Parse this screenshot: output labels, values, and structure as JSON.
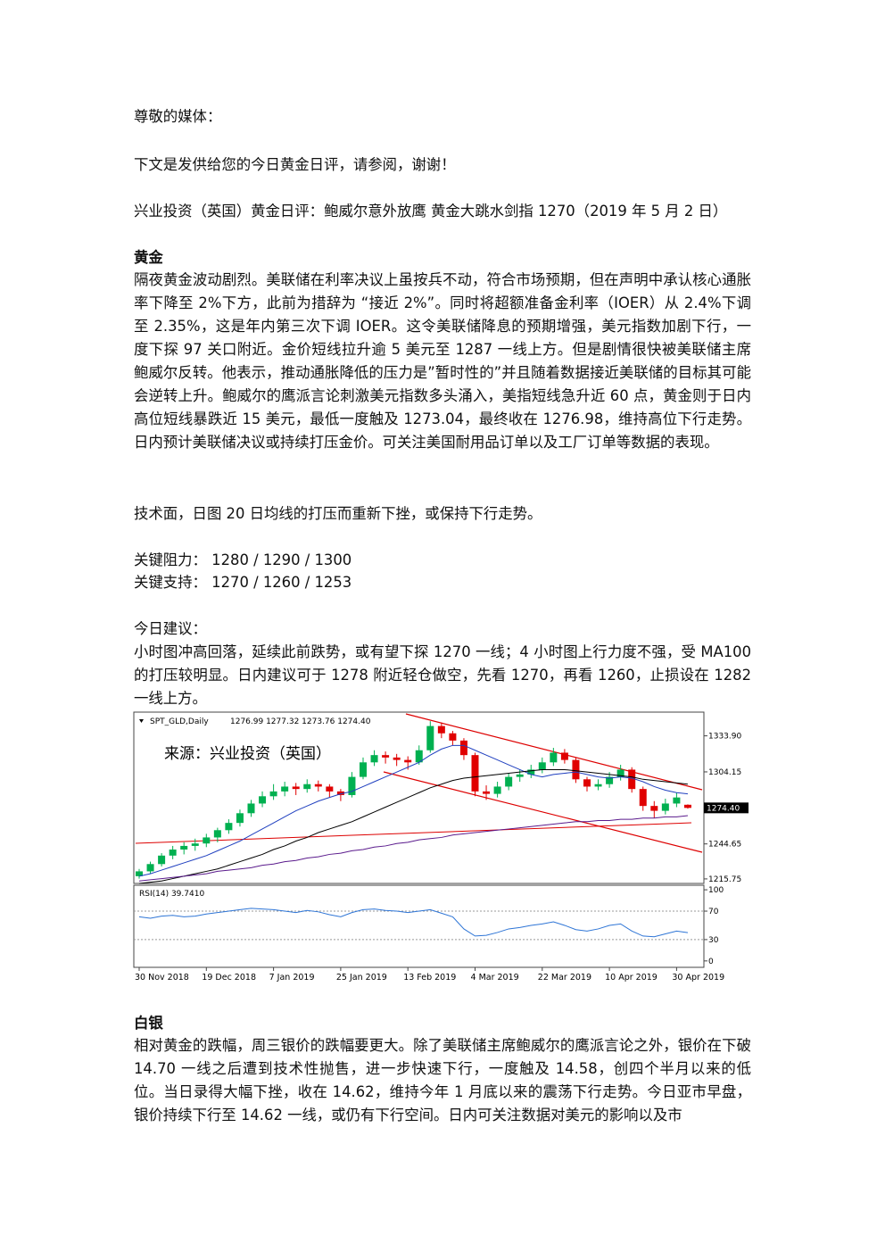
{
  "greeting": "尊敬的媒体：",
  "intro": "下文是发供给您的今日黄金日评，请参阅，谢谢！",
  "headline": "兴业投资（英国）黄金日评：鲍威尔意外放鹰  黄金大跳水剑指 1270（2019 年 5 月 2 日）",
  "gold": {
    "heading": "黄金",
    "paragraph": "隔夜黄金波动剧烈。美联储在利率决议上虽按兵不动，符合市场预期，但在声明中承认核心通胀率下降至 2%下方，此前为措辞为 “接近 2%”。同时将超额准备金利率（IOER）从 2.4%下调至 2.35%，这是年内第三次下调 IOER。这令美联储降息的预期增强，美元指数加剧下行，一度下探 97 关口附近。金价短线拉升逾 5 美元至 1287 一线上方。但是剧情很快被美联储主席鲍威尔反转。他表示，推动通胀降低的压力是”暂时性的”并且随着数据接近美联储的目标其可能会逆转上升。鲍威尔的鹰派言论刺激美元指数多头涌入，美指短线急升近 60 点，黄金则于日内高位短线暴跌近 15 美元，最低一度触及 1273.04，最终收在 1276.98，维持高位下行走势。日内预计美联储决议或持续打压金价。可关注美国耐用品订单以及工厂订单等数据的表现。",
    "technical": "技术面，日图 20 日均线的打压而重新下挫，或保持下行走势。",
    "resistance": "关键阻力：  1280 / 1290 / 1300",
    "support": "关键支持：  1270 / 1260 / 1253",
    "advice_heading": "今日建议：",
    "advice": "小时图冲高回落，延续此前跌势，或有望下探 1270 一线；4 小时图上行力度不强，受 MA100的打压较明显。日内建议可于 1278 附近轻仓做空，先看 1270，再看 1260，止损设在 1282一线上方。"
  },
  "chart_data": {
    "type": "candlestick",
    "symbol": "SPT_GLD,Daily",
    "ohlc_text": "1276.99 1277.32 1273.76 1274.40",
    "watermark": "来源：兴业投资（英国）",
    "price_tag": "1274.40",
    "categories": [
      "30 Nov 2018",
      null,
      null,
      null,
      null,
      null,
      "19 Dec 2018",
      null,
      null,
      null,
      null,
      null,
      "7 Jan 2019",
      null,
      null,
      null,
      null,
      null,
      "25 Jan 2019",
      null,
      null,
      null,
      null,
      null,
      "13 Feb 2019",
      null,
      null,
      null,
      null,
      null,
      "4 Mar 2019",
      null,
      null,
      null,
      null,
      null,
      "22 Mar 2019",
      null,
      null,
      null,
      null,
      null,
      "10 Apr 2019",
      null,
      null,
      null,
      null,
      null,
      "30 Apr 2019",
      null
    ],
    "candles": [
      [
        1218,
        1224,
        1216,
        1222
      ],
      [
        1222,
        1230,
        1220,
        1228
      ],
      [
        1228,
        1237,
        1226,
        1235
      ],
      [
        1235,
        1243,
        1232,
        1240
      ],
      [
        1240,
        1246,
        1236,
        1243
      ],
      [
        1243,
        1249,
        1239,
        1245
      ],
      [
        1245,
        1253,
        1242,
        1250
      ],
      [
        1250,
        1258,
        1246,
        1256
      ],
      [
        1256,
        1265,
        1253,
        1262
      ],
      [
        1262,
        1273,
        1259,
        1270
      ],
      [
        1270,
        1281,
        1267,
        1278
      ],
      [
        1278,
        1288,
        1275,
        1284
      ],
      [
        1284,
        1294,
        1281,
        1288
      ],
      [
        1288,
        1296,
        1284,
        1292
      ],
      [
        1292,
        1295,
        1285,
        1290
      ],
      [
        1290,
        1298,
        1287,
        1294
      ],
      [
        1294,
        1297,
        1288,
        1292
      ],
      [
        1292,
        1294,
        1283,
        1288
      ],
      [
        1288,
        1290,
        1280,
        1285
      ],
      [
        1285,
        1304,
        1283,
        1300
      ],
      [
        1300,
        1316,
        1298,
        1312
      ],
      [
        1312,
        1322,
        1309,
        1318
      ],
      [
        1318,
        1321,
        1311,
        1316
      ],
      [
        1316,
        1319,
        1309,
        1314
      ],
      [
        1314,
        1317,
        1306,
        1312
      ],
      [
        1312,
        1326,
        1310,
        1322
      ],
      [
        1322,
        1346,
        1320,
        1342
      ],
      [
        1342,
        1345,
        1332,
        1336
      ],
      [
        1336,
        1338,
        1326,
        1330
      ],
      [
        1330,
        1332,
        1314,
        1318
      ],
      [
        1318,
        1320,
        1284,
        1288
      ],
      [
        1288,
        1293,
        1281,
        1286
      ],
      [
        1286,
        1296,
        1283,
        1292
      ],
      [
        1292,
        1303,
        1289,
        1300
      ],
      [
        1300,
        1306,
        1296,
        1302
      ],
      [
        1302,
        1310,
        1299,
        1306
      ],
      [
        1306,
        1316,
        1303,
        1312
      ],
      [
        1312,
        1324,
        1309,
        1320
      ],
      [
        1320,
        1323,
        1311,
        1314
      ],
      [
        1314,
        1316,
        1295,
        1298
      ],
      [
        1298,
        1300,
        1288,
        1292
      ],
      [
        1292,
        1298,
        1289,
        1294
      ],
      [
        1294,
        1304,
        1291,
        1300
      ],
      [
        1300,
        1310,
        1297,
        1306
      ],
      [
        1306,
        1308,
        1287,
        1290
      ],
      [
        1290,
        1292,
        1272,
        1276
      ],
      [
        1276,
        1280,
        1266,
        1272
      ],
      [
        1272,
        1282,
        1269,
        1278
      ],
      [
        1278,
        1287,
        1275,
        1283
      ],
      [
        1276.99,
        1277.32,
        1273.76,
        1274.4
      ]
    ],
    "up_color": "#00b050",
    "down_color": "#e00000",
    "moving_averages": [
      {
        "color": "#1f3fbf",
        "values": [
          1218,
          1220,
          1223,
          1226,
          1229,
          1232,
          1235,
          1239,
          1243,
          1247,
          1252,
          1257,
          1262,
          1267,
          1272,
          1276,
          1280,
          1283,
          1286,
          1288,
          1292,
          1296,
          1300,
          1304,
          1308,
          1312,
          1318,
          1323,
          1326,
          1326,
          1322,
          1318,
          1314,
          1310,
          1306,
          1302,
          1300,
          1302,
          1303,
          1304,
          1302,
          1300,
          1299,
          1300,
          1299,
          1296,
          1292,
          1289,
          1287,
          1286
        ]
      },
      {
        "color": "#000000",
        "values": [
          1212,
          1213,
          1214,
          1216,
          1218,
          1220,
          1222,
          1224,
          1227,
          1230,
          1233,
          1236,
          1240,
          1243,
          1247,
          1250,
          1254,
          1257,
          1260,
          1263,
          1267,
          1271,
          1275,
          1279,
          1283,
          1287,
          1291,
          1294,
          1297,
          1299,
          1300,
          1301,
          1302,
          1303,
          1304,
          1305,
          1306,
          1306,
          1306,
          1305,
          1304,
          1303,
          1302,
          1301,
          1300,
          1298,
          1297,
          1296,
          1295,
          1294
        ]
      },
      {
        "color": "#5a1a8c",
        "values": [
          1214,
          1215,
          1216,
          1217,
          1218,
          1219,
          1220,
          1222,
          1223,
          1224,
          1225,
          1227,
          1228,
          1230,
          1231,
          1233,
          1234,
          1236,
          1237,
          1239,
          1240,
          1242,
          1243,
          1245,
          1246,
          1248,
          1249,
          1250,
          1252,
          1253,
          1254,
          1255,
          1256,
          1257,
          1258,
          1259,
          1260,
          1261,
          1262,
          1263,
          1263,
          1264,
          1264,
          1265,
          1265,
          1266,
          1266,
          1267,
          1267,
          1268
        ]
      }
    ],
    "ylim": [
      1212,
      1353.5
    ],
    "yticks": [
      {
        "value": 1333.9,
        "label": "1333.90"
      },
      1304.15,
      1244.65,
      1215.75
    ],
    "rsi": {
      "title": "RSI(14) 39.7410",
      "color": "#2e75d6",
      "values": [
        62,
        60,
        63,
        64,
        62,
        63,
        66,
        68,
        70,
        72,
        74,
        73,
        72,
        70,
        68,
        71,
        69,
        65,
        62,
        68,
        72,
        73,
        71,
        70,
        68,
        70,
        72,
        67,
        62,
        45,
        35,
        36,
        40,
        45,
        47,
        50,
        52,
        55,
        50,
        44,
        42,
        45,
        50,
        52,
        42,
        35,
        34,
        38,
        42,
        39.741
      ],
      "ylim": [
        -9,
        106.4
      ],
      "yticks": [
        100,
        70,
        30,
        0
      ],
      "grid": [
        70,
        30
      ]
    }
  },
  "silver": {
    "heading": "白银",
    "paragraph": "相对黄金的跌幅，周三银价的跌幅要更大。除了美联储主席鲍威尔的鹰派言论之外，银价在下破 14.70 一线之后遭到技术性抛售，进一步快速下行，一度触及 14.58，创四个半月以来的低位。当日录得大幅下挫，收在 14.62，维持今年 1 月底以来的震荡下行走势。今日亚市早盘，银价持续下行至 14.62 一线，或仍有下行空间。日内可关注数据对美元的影响以及市"
  }
}
